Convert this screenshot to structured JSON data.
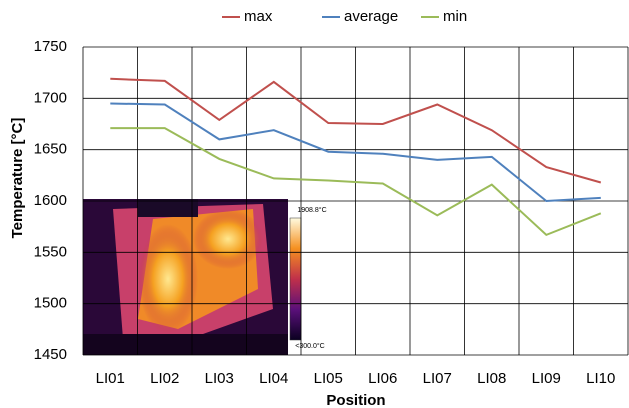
{
  "chart_data": {
    "type": "line",
    "y_label": "Temperature [°C]",
    "x_label": "Position",
    "categories": [
      "LI01",
      "LI02",
      "LI03",
      "LI04",
      "LI05",
      "LI06",
      "LI07",
      "LI08",
      "LI09",
      "LI10"
    ],
    "series": [
      {
        "name": "max",
        "color": "#c0504d",
        "values": [
          1719,
          1717,
          1679,
          1716,
          1676,
          1675,
          1694,
          1669,
          1633,
          1618
        ]
      },
      {
        "name": "average",
        "color": "#4f81bd",
        "values": [
          1695,
          1694,
          1660,
          1669,
          1648,
          1646,
          1640,
          1643,
          1600,
          1603
        ]
      },
      {
        "name": "min",
        "color": "#9bbb59",
        "values": [
          1671,
          1671,
          1641,
          1622,
          1620,
          1617,
          1586,
          1616,
          1567,
          1588
        ]
      }
    ],
    "ylim": [
      1450,
      1750
    ],
    "yticks": [
      1450,
      1500,
      1550,
      1600,
      1650,
      1700,
      1750
    ],
    "grid": true,
    "legend": "top",
    "inset": {
      "scale_max_label": "1908.8°C",
      "scale_min_label": "<300.0°C"
    }
  }
}
